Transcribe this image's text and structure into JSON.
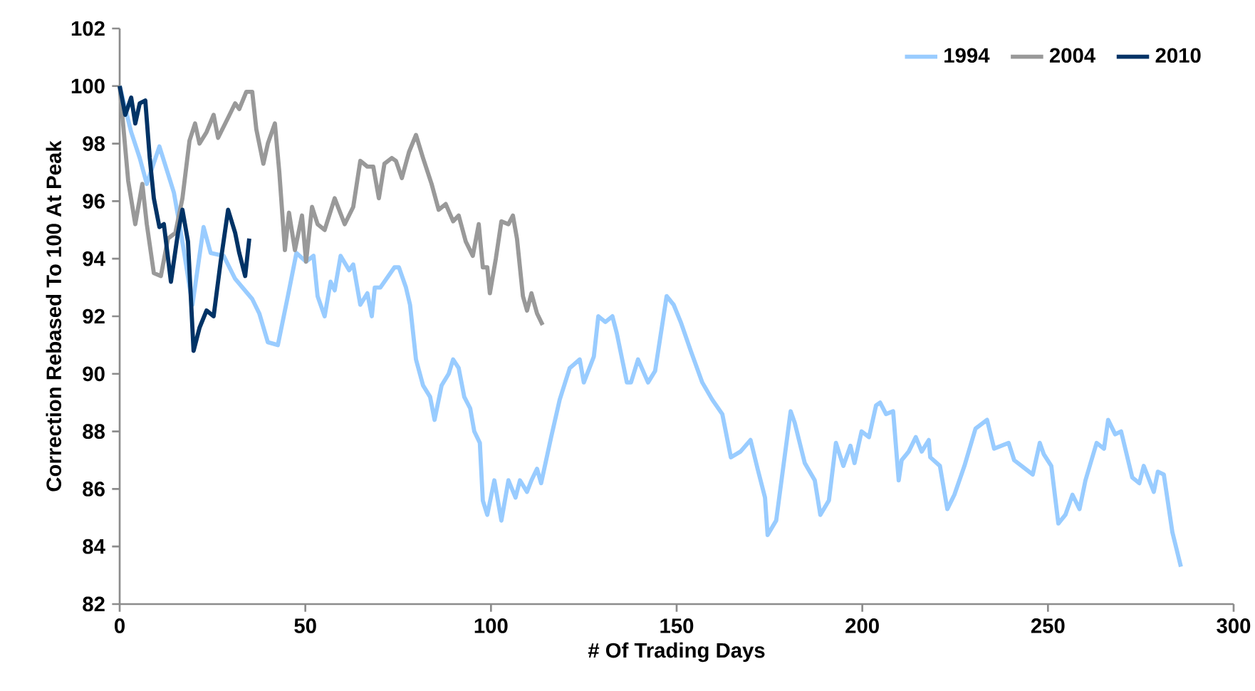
{
  "chart_data": {
    "type": "line",
    "xlabel": "# Of Trading Days",
    "ylabel": "Correction Rebased To 100 At Peak",
    "xlim": [
      0,
      300
    ],
    "ylim": [
      82,
      102
    ],
    "xticks": [
      0,
      50,
      100,
      150,
      200,
      250,
      300
    ],
    "yticks": [
      82,
      84,
      86,
      88,
      90,
      92,
      94,
      96,
      98,
      100,
      102
    ],
    "grid": false,
    "legend": "top right",
    "marker": "none",
    "line_style": "solid",
    "series": [
      {
        "name": "1994",
        "color": "#99ccff",
        "x": [
          0,
          3.1,
          5.4,
          7.3,
          10.7,
          14.6,
          16.5,
          19.6,
          22.6,
          24.5,
          28.0,
          31.1,
          35.7,
          37.6,
          39.9,
          42.6,
          45.3,
          47.6,
          50.2,
          52.2,
          53.3,
          55.2,
          56.8,
          57.9,
          59.5,
          61.8,
          62.9,
          64.8,
          66.7,
          67.9,
          68.7,
          70.2,
          74.0,
          75.2,
          77.1,
          78.2,
          79.8,
          81.7,
          83.6,
          84.8,
          86.7,
          88.6,
          89.8,
          91.3,
          92.8,
          94.4,
          95.5,
          97.0,
          97.8,
          99.0,
          100.9,
          102.8,
          104.7,
          106.6,
          107.8,
          109.7,
          110.9,
          112.4,
          113.5,
          116.2,
          118.5,
          121.2,
          123.9,
          125.0,
          127.7,
          128.9,
          130.8,
          132.7,
          133.9,
          136.6,
          137.7,
          139.6,
          142.3,
          144.2,
          147.3,
          149.2,
          151.1,
          153.8,
          156.9,
          159.6,
          162.3,
          164.6,
          167.2,
          169.9,
          171.8,
          173.8,
          174.5,
          176.8,
          180.7,
          181.8,
          184.5,
          187.2,
          188.7,
          191.0,
          192.9,
          194.9,
          196.8,
          197.9,
          199.8,
          201.8,
          203.7,
          204.8,
          206.4,
          208.3,
          209.8,
          210.6,
          212.5,
          214.4,
          216.0,
          217.9,
          218.3,
          220.9,
          222.9,
          224.8,
          227.5,
          230.5,
          233.6,
          235.5,
          239.4,
          240.9,
          245.9,
          247.8,
          248.9,
          250.9,
          252.8,
          254.7,
          256.6,
          258.5,
          260.1,
          263.1,
          265.1,
          266.2,
          268.1,
          269.7,
          272.7,
          274.6,
          275.8,
          278.5,
          279.6,
          281.2,
          283.5,
          285.8
        ],
        "values": [
          100,
          98.4,
          97.5,
          96.6,
          97.9,
          96.3,
          94.9,
          92.4,
          95.1,
          94.2,
          94.1,
          93.3,
          92.6,
          92.1,
          91.1,
          91.0,
          92.7,
          94.2,
          93.9,
          94.1,
          92.7,
          92.0,
          93.2,
          92.9,
          94.1,
          93.6,
          93.8,
          92.4,
          92.8,
          92.0,
          93.0,
          93.0,
          93.7,
          93.7,
          93.0,
          92.4,
          90.5,
          89.6,
          89.2,
          88.4,
          89.6,
          90.0,
          90.5,
          90.2,
          89.2,
          88.8,
          88.0,
          87.6,
          85.6,
          85.1,
          86.3,
          84.9,
          86.3,
          85.7,
          86.3,
          85.9,
          86.3,
          86.7,
          86.2,
          87.8,
          89.1,
          90.2,
          90.5,
          89.7,
          90.6,
          92.0,
          91.8,
          92.0,
          91.4,
          89.7,
          89.7,
          90.5,
          89.7,
          90.1,
          92.7,
          92.4,
          91.8,
          90.8,
          89.7,
          89.1,
          88.6,
          87.1,
          87.3,
          87.7,
          86.7,
          85.7,
          84.4,
          84.9,
          88.7,
          88.3,
          86.9,
          86.3,
          85.1,
          85.6,
          87.6,
          86.8,
          87.5,
          86.9,
          88.0,
          87.8,
          88.9,
          89.0,
          88.6,
          88.7,
          86.3,
          87.0,
          87.3,
          87.8,
          87.3,
          87.7,
          87.1,
          86.8,
          85.3,
          85.8,
          86.8,
          88.1,
          88.4,
          87.4,
          87.6,
          87.0,
          86.5,
          87.6,
          87.2,
          86.8,
          84.8,
          85.1,
          85.8,
          85.3,
          86.3,
          87.6,
          87.4,
          88.4,
          87.9,
          88.0,
          86.4,
          86.2,
          86.8,
          85.9,
          86.6,
          86.5,
          84.5,
          83.3
        ]
      },
      {
        "name": "2004",
        "color": "#999999",
        "x": [
          0,
          2.3,
          4.2,
          6.1,
          7.3,
          9.2,
          11.1,
          13.0,
          15.0,
          16.9,
          18.8,
          20.3,
          21.5,
          23.4,
          25.3,
          26.5,
          29.2,
          31.1,
          32.2,
          34.1,
          35.7,
          36.8,
          38.7,
          39.9,
          41.8,
          43.0,
          44.5,
          45.6,
          47.2,
          49.1,
          50.2,
          51.8,
          53.3,
          55.2,
          57.9,
          60.6,
          62.9,
          64.8,
          66.7,
          68.3,
          69.8,
          71.3,
          73.3,
          74.4,
          76.0,
          77.9,
          79.8,
          81.7,
          84.0,
          85.9,
          87.8,
          89.8,
          91.3,
          93.2,
          95.1,
          96.7,
          97.8,
          99.0,
          99.7,
          101.3,
          102.8,
          104.7,
          105.9,
          107.0,
          108.6,
          109.7,
          110.9,
          112.4,
          113.9
        ],
        "values": [
          100,
          96.7,
          95.2,
          96.6,
          95.2,
          93.5,
          93.4,
          94.7,
          94.9,
          96.1,
          98.1,
          98.7,
          98.0,
          98.4,
          99.0,
          98.2,
          98.9,
          99.4,
          99.2,
          99.8,
          99.8,
          98.5,
          97.3,
          98.0,
          98.7,
          97.0,
          94.3,
          95.6,
          94.3,
          95.5,
          93.9,
          95.8,
          95.2,
          95.0,
          96.1,
          95.2,
          95.8,
          97.4,
          97.2,
          97.2,
          96.1,
          97.3,
          97.5,
          97.4,
          96.8,
          97.7,
          98.3,
          97.5,
          96.6,
          95.7,
          95.9,
          95.3,
          95.5,
          94.6,
          94.1,
          95.2,
          93.7,
          93.7,
          92.8,
          94.0,
          95.3,
          95.2,
          95.5,
          94.7,
          92.7,
          92.2,
          92.8,
          92.1,
          91.7
        ]
      },
      {
        "name": "2010",
        "color": "#003366",
        "x": [
          0,
          1.5,
          3.1,
          4.2,
          5.4,
          6.9,
          8.1,
          9.2,
          10.7,
          11.9,
          13.8,
          15.7,
          16.9,
          18.4,
          19.9,
          21.5,
          23.4,
          25.3,
          27.2,
          29.2,
          31.1,
          32.2,
          33.8,
          34.9
        ],
        "values": [
          100,
          99.0,
          99.6,
          98.7,
          99.4,
          99.5,
          97.5,
          96.1,
          95.1,
          95.2,
          93.2,
          94.9,
          95.7,
          94.6,
          90.8,
          91.6,
          92.2,
          92.0,
          93.9,
          95.7,
          94.9,
          94.2,
          93.4,
          94.7
        ]
      }
    ]
  }
}
